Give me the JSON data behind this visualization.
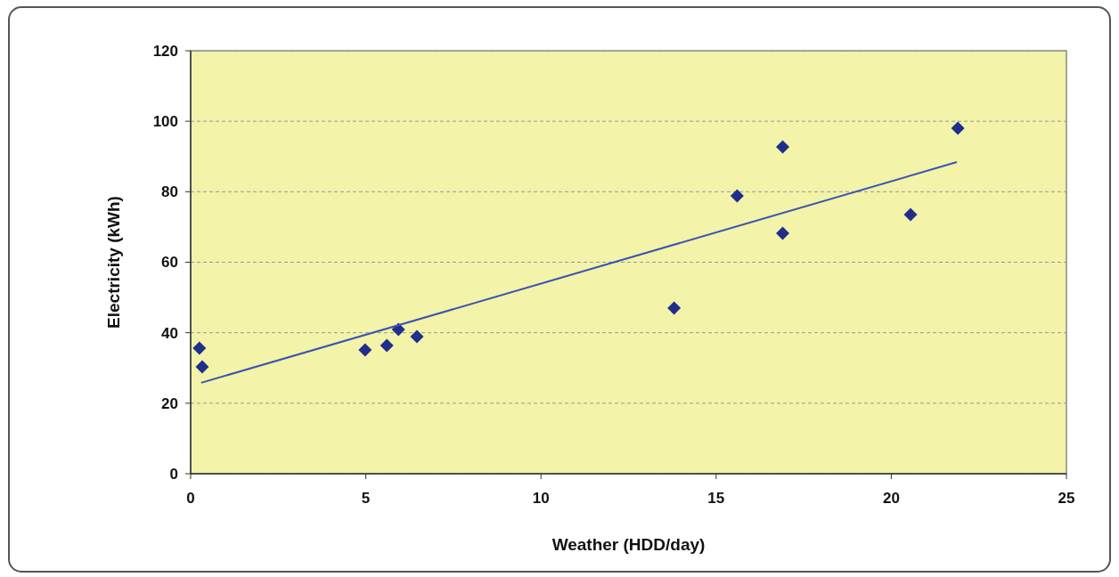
{
  "chart_data": {
    "type": "scatter",
    "xlabel": "Weather (HDD/day)",
    "ylabel": "Electricity (kWh)",
    "xlim": [
      0,
      25
    ],
    "xticks": [
      0,
      5,
      10,
      15,
      20,
      25
    ],
    "ylim": [
      0,
      120
    ],
    "yticks": [
      0,
      20,
      40,
      60,
      80,
      100,
      120
    ],
    "grid": "y",
    "marker": "diamond",
    "series": [
      {
        "color": "#1f2e8c",
        "x": [
          0.25,
          0.33,
          4.98,
          5.6,
          5.93,
          6.46,
          13.8,
          15.6,
          16.9,
          16.9,
          20.55,
          21.9
        ],
        "values": [
          35.6,
          30.3,
          35.1,
          36.4,
          40.9,
          38.9,
          47.0,
          78.8,
          92.7,
          68.2,
          73.5,
          98.0
        ]
      },
      {
        "type": "line",
        "color": "#3b52b4",
        "marker": "none",
        "x": [
          0.3,
          21.87
        ],
        "values": [
          25.8,
          88.4
        ]
      }
    ]
  }
}
